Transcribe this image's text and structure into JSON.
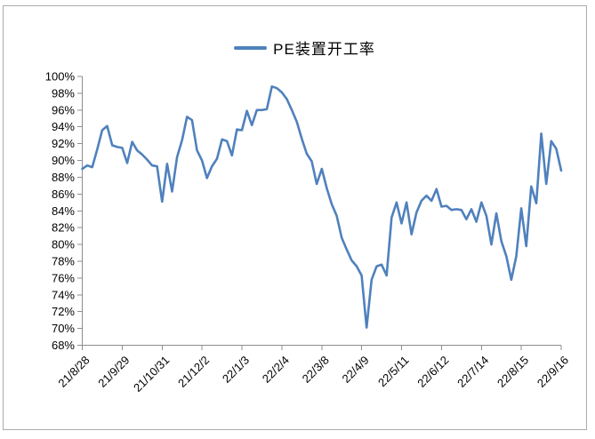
{
  "chart": {
    "colors": {
      "series_line": "#4F81BD",
      "axis": "#8e8e8e",
      "frame_border": "#ababab",
      "text": "#000000",
      "background": "#FFFFFF"
    }
  },
  "chart_data": {
    "type": "line",
    "title": "",
    "legend": [
      "PE装置开工率"
    ],
    "legend_position": "top-center",
    "grid": false,
    "x_labels": [
      "21/8/28",
      "21/9/29",
      "21/10/31",
      "21/12/2",
      "22/1/3",
      "22/2/4",
      "22/3/8",
      "22/4/9",
      "22/5/11",
      "22/6/12",
      "22/7/14",
      "22/8/15",
      "22/9/16"
    ],
    "categories_per_label": 8,
    "y_axis": {
      "min": 68,
      "max": 100,
      "step": 2,
      "unit": "%",
      "tick_labels": [
        "100%",
        "98%",
        "96%",
        "94%",
        "92%",
        "90%",
        "88%",
        "86%",
        "84%",
        "82%",
        "80%",
        "78%",
        "76%",
        "74%",
        "72%",
        "70%",
        "68%"
      ]
    },
    "series": [
      {
        "name": "PE装置开工率",
        "values": [
          89.0,
          89.4,
          89.2,
          91.3,
          93.6,
          94.1,
          91.8,
          91.6,
          91.5,
          89.7,
          92.2,
          91.2,
          90.7,
          90.1,
          89.4,
          89.3,
          85.1,
          89.6,
          86.3,
          90.4,
          92.4,
          95.2,
          94.8,
          91.2,
          90.0,
          87.9,
          89.3,
          90.2,
          92.5,
          92.3,
          90.6,
          93.7,
          93.6,
          95.9,
          94.2,
          96.0,
          96.0,
          96.1,
          98.8,
          98.6,
          98.1,
          97.3,
          96.0,
          94.6,
          92.6,
          90.8,
          89.9,
          87.2,
          89.0,
          86.7,
          84.8,
          83.4,
          80.8,
          79.4,
          78.1,
          77.4,
          76.3,
          70.1,
          75.8,
          77.4,
          77.6,
          76.3,
          83.2,
          85.0,
          82.5,
          85.0,
          81.2,
          83.8,
          85.2,
          85.8,
          85.2,
          86.6,
          84.5,
          84.6,
          84.1,
          84.2,
          84.1,
          83.0,
          84.2,
          82.7,
          85.0,
          83.4,
          80.0,
          83.7,
          80.4,
          78.6,
          75.8,
          78.6,
          84.3,
          79.8,
          86.9,
          84.9,
          93.2,
          87.2,
          92.3,
          91.4,
          88.8
        ]
      }
    ]
  }
}
